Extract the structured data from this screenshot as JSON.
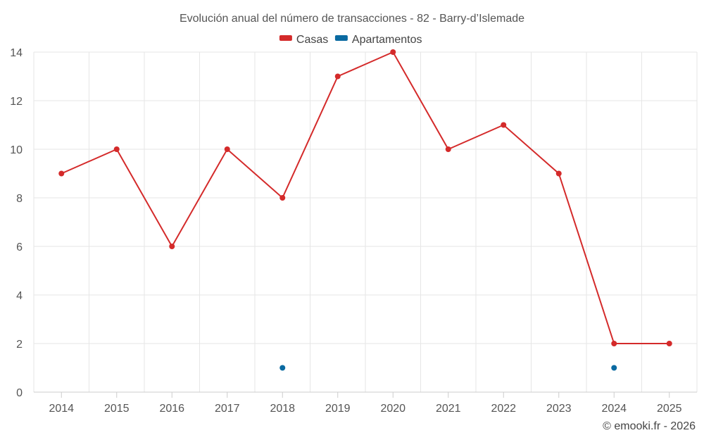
{
  "chart_data": {
    "type": "line",
    "title": "Evolución anual del número de transacciones - 82 - Barry-d’Islemade",
    "x": [
      "2014",
      "2015",
      "2016",
      "2017",
      "2018",
      "2019",
      "2020",
      "2021",
      "2022",
      "2023",
      "2024",
      "2025"
    ],
    "series": [
      {
        "name": "Casas",
        "color": "#d42a2a",
        "values": [
          9,
          10,
          6,
          10,
          8,
          13,
          14,
          10,
          11,
          9,
          2,
          2
        ]
      },
      {
        "name": "Apartamentos",
        "color": "#0a6aa1",
        "values": [
          null,
          null,
          null,
          null,
          1,
          null,
          null,
          null,
          null,
          null,
          1,
          null
        ]
      }
    ],
    "ylim": [
      0,
      14
    ],
    "yticks": [
      0,
      2,
      4,
      6,
      8,
      10,
      12,
      14
    ],
    "grid": true,
    "legend_position": "top-center"
  },
  "credit": "© emooki.fr - 2026"
}
